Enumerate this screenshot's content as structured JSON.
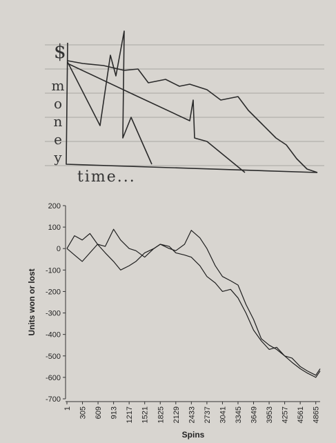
{
  "sketch": {
    "currency_symbol": "$",
    "y_label": "money",
    "x_label": "time..."
  },
  "chart_data": {
    "type": "line",
    "x": [
      1,
      150,
      300,
      450,
      600,
      750,
      913,
      1050,
      1217,
      1350,
      1521,
      1700,
      1825,
      2000,
      2129,
      2300,
      2433,
      2600,
      2737,
      2900,
      3041,
      3200,
      3345,
      3500,
      3649,
      3800,
      3953,
      4100,
      4257,
      4400,
      4561,
      4700,
      4865,
      4950
    ],
    "series": [
      {
        "color": "#1e1e1e",
        "values": [
          0,
          60,
          40,
          70,
          20,
          -20,
          -60,
          -100,
          -80,
          -60,
          -20,
          0,
          20,
          0,
          -10,
          20,
          85,
          50,
          0,
          -80,
          -130,
          -150,
          -170,
          -260,
          -330,
          -420,
          -450,
          -470,
          -500,
          -530,
          -560,
          -580,
          -600,
          -570
        ]
      },
      {
        "color": "#1e1e1e",
        "values": [
          0,
          -30,
          -60,
          -20,
          20,
          10,
          90,
          40,
          0,
          -10,
          -40,
          0,
          20,
          10,
          -20,
          -30,
          -40,
          -80,
          -130,
          -160,
          -200,
          -190,
          -230,
          -300,
          -380,
          -430,
          -470,
          -460,
          -500,
          -510,
          -550,
          -570,
          -590,
          -560
        ]
      }
    ],
    "xlim": [
      1,
      4950
    ],
    "ylim": [
      -700,
      200
    ],
    "xticks": [
      1,
      305,
      609,
      913,
      1217,
      1521,
      1825,
      2129,
      2433,
      2737,
      3041,
      3345,
      3649,
      3953,
      4257,
      4561,
      4865
    ],
    "yticks": [
      200,
      100,
      0,
      -100,
      -200,
      -300,
      -400,
      -500,
      -600,
      -700
    ],
    "xlabel": "Spins",
    "ylabel": "Units won or lost"
  }
}
